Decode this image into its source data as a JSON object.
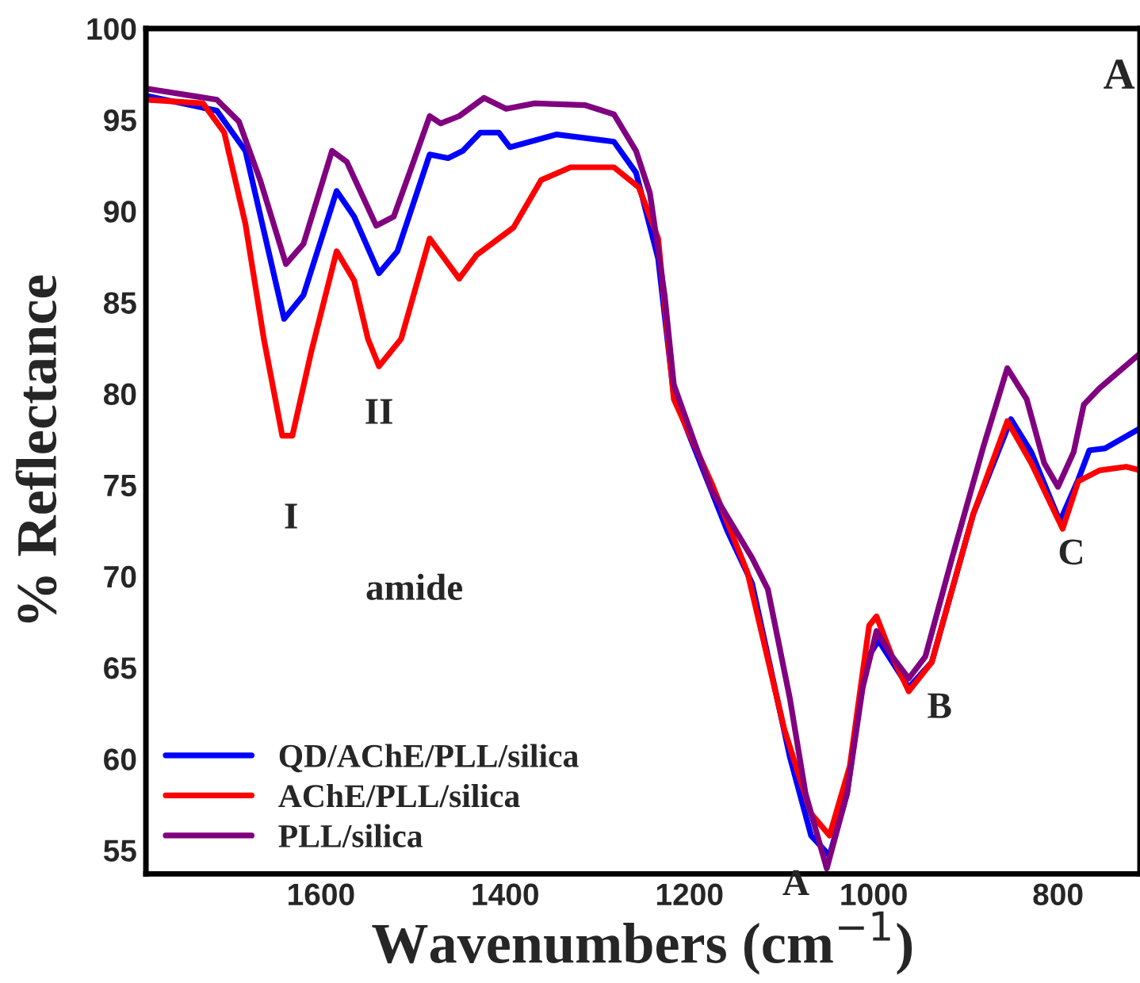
{
  "chart_data": {
    "type": "line",
    "xlabel": "Wavenumbers (cm$^{−1}$)",
    "ylabel": "% Reflectance",
    "xlim": [
      1790,
      711
    ],
    "ylim": [
      53.7,
      100
    ],
    "xticks": [
      1600,
      1400,
      1200,
      1000,
      800
    ],
    "yticks": [
      55,
      60,
      65,
      70,
      75,
      80,
      85,
      90,
      95,
      100
    ],
    "grid": false,
    "legend": "bottom left",
    "marker": "none",
    "line_style": "solid",
    "series": [
      {
        "name": "QD/AChE/PLL/silica",
        "color": "#0000ff",
        "x": [
          1788,
          1713,
          1682,
          1640,
          1619,
          1583,
          1564,
          1537,
          1517,
          1482,
          1462,
          1446,
          1427,
          1407,
          1395,
          1344,
          1282,
          1258,
          1234,
          1217,
          1200,
          1159,
          1132,
          1091,
          1068,
          1048,
          1029,
          1009,
          995,
          962,
          937,
          892,
          851,
          829,
          798,
          778,
          766,
          749,
          711
        ],
        "values": [
          96.3,
          95.5,
          93.3,
          84.1,
          85.4,
          91.1,
          89.7,
          86.6,
          87.8,
          93.1,
          92.9,
          93.3,
          94.3,
          94.3,
          93.5,
          94.2,
          93.8,
          92.1,
          87.4,
          79.9,
          77.7,
          72.5,
          69.6,
          60.1,
          55.8,
          54.7,
          58.1,
          65.3,
          66.5,
          63.9,
          65.3,
          73.4,
          78.6,
          76.8,
          73.0,
          75.3,
          76.9,
          77.0,
          78.1
        ]
      },
      {
        "name": "AChE/PLL/silica",
        "color": "#ff0000",
        "x": [
          1788,
          1728,
          1705,
          1682,
          1662,
          1642,
          1631,
          1611,
          1583,
          1564,
          1549,
          1537,
          1513,
          1482,
          1466,
          1450,
          1431,
          1391,
          1361,
          1329,
          1282,
          1255,
          1234,
          1217,
          1176,
          1137,
          1097,
          1068,
          1048,
          1026,
          1005,
          997,
          980,
          962,
          937,
          892,
          855,
          829,
          795,
          778,
          755,
          726,
          711
        ],
        "values": [
          96.1,
          95.9,
          94.3,
          89.3,
          83.0,
          77.7,
          77.7,
          82.2,
          87.8,
          86.2,
          83.0,
          81.5,
          83.0,
          88.5,
          87.4,
          86.3,
          87.6,
          89.1,
          91.7,
          92.4,
          92.4,
          91.3,
          88.5,
          79.7,
          75.1,
          70.2,
          61.6,
          57.0,
          55.8,
          59.6,
          67.3,
          67.8,
          65.6,
          63.7,
          65.3,
          73.4,
          78.5,
          76.2,
          72.6,
          75.2,
          75.8,
          76.0,
          75.8
        ]
      },
      {
        "name": "PLL/silica",
        "color": "#800080",
        "x": [
          1788,
          1713,
          1689,
          1666,
          1638,
          1619,
          1588,
          1572,
          1540,
          1521,
          1501,
          1482,
          1470,
          1450,
          1423,
          1399,
          1368,
          1313,
          1282,
          1258,
          1243,
          1227,
          1217,
          1176,
          1132,
          1115,
          1091,
          1074,
          1051,
          1029,
          1012,
          997,
          980,
          962,
          944,
          915,
          881,
          855,
          834,
          815,
          800,
          783,
          772,
          755,
          711
        ],
        "values": [
          96.7,
          96.1,
          94.9,
          91.7,
          87.1,
          88.2,
          93.3,
          92.7,
          89.2,
          89.7,
          92.5,
          95.2,
          94.8,
          95.2,
          96.2,
          95.6,
          95.9,
          95.8,
          95.3,
          93.3,
          91.0,
          85.4,
          80.5,
          74.7,
          71.0,
          69.3,
          63.3,
          58.1,
          54.0,
          58.1,
          63.9,
          67.0,
          65.6,
          64.4,
          65.6,
          71.0,
          77.1,
          81.4,
          79.7,
          76.2,
          74.9,
          76.8,
          79.4,
          80.3,
          82.2
        ]
      }
    ],
    "annotations": [
      "A",
      {
        "text": "I",
        "x": 1642,
        "y": 77.7
      },
      {
        "text": "II",
        "x": 1537,
        "y": 81.5
      },
      "amide",
      {
        "text": "A",
        "x": 1051,
        "y": 54.0
      },
      {
        "text": "B",
        "x": 962,
        "y": 63.7
      },
      {
        "text": "C",
        "x": 795,
        "y": 72.6
      }
    ]
  }
}
